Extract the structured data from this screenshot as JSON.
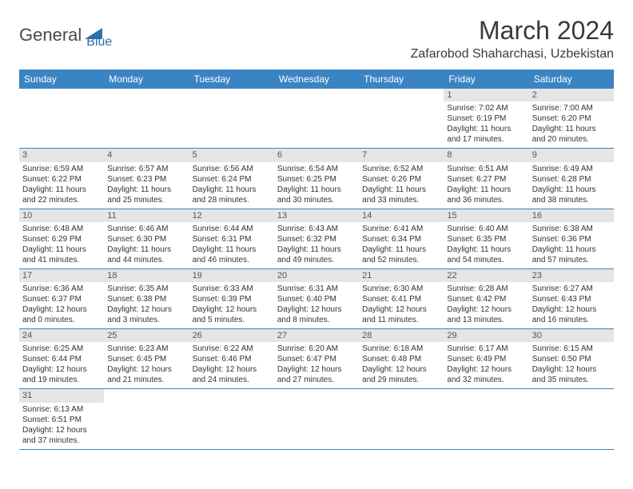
{
  "logo": {
    "part1": "General",
    "part2": "Blue"
  },
  "title": "March 2024",
  "location": "Zafarobod Shaharchasi, Uzbekistan",
  "colors": {
    "header_bg": "#3b84c4",
    "daynum_bg": "#e5e5e5",
    "logo_blue": "#2f6fa8",
    "text": "#333333"
  },
  "weekdays": [
    "Sunday",
    "Monday",
    "Tuesday",
    "Wednesday",
    "Thursday",
    "Friday",
    "Saturday"
  ],
  "weeks": [
    [
      {
        "empty": true
      },
      {
        "empty": true
      },
      {
        "empty": true
      },
      {
        "empty": true
      },
      {
        "empty": true
      },
      {
        "day": "1",
        "sunrise": "Sunrise: 7:02 AM",
        "sunset": "Sunset: 6:19 PM",
        "daylight1": "Daylight: 11 hours",
        "daylight2": "and 17 minutes."
      },
      {
        "day": "2",
        "sunrise": "Sunrise: 7:00 AM",
        "sunset": "Sunset: 6:20 PM",
        "daylight1": "Daylight: 11 hours",
        "daylight2": "and 20 minutes."
      }
    ],
    [
      {
        "day": "3",
        "sunrise": "Sunrise: 6:59 AM",
        "sunset": "Sunset: 6:22 PM",
        "daylight1": "Daylight: 11 hours",
        "daylight2": "and 22 minutes."
      },
      {
        "day": "4",
        "sunrise": "Sunrise: 6:57 AM",
        "sunset": "Sunset: 6:23 PM",
        "daylight1": "Daylight: 11 hours",
        "daylight2": "and 25 minutes."
      },
      {
        "day": "5",
        "sunrise": "Sunrise: 6:56 AM",
        "sunset": "Sunset: 6:24 PM",
        "daylight1": "Daylight: 11 hours",
        "daylight2": "and 28 minutes."
      },
      {
        "day": "6",
        "sunrise": "Sunrise: 6:54 AM",
        "sunset": "Sunset: 6:25 PM",
        "daylight1": "Daylight: 11 hours",
        "daylight2": "and 30 minutes."
      },
      {
        "day": "7",
        "sunrise": "Sunrise: 6:52 AM",
        "sunset": "Sunset: 6:26 PM",
        "daylight1": "Daylight: 11 hours",
        "daylight2": "and 33 minutes."
      },
      {
        "day": "8",
        "sunrise": "Sunrise: 6:51 AM",
        "sunset": "Sunset: 6:27 PM",
        "daylight1": "Daylight: 11 hours",
        "daylight2": "and 36 minutes."
      },
      {
        "day": "9",
        "sunrise": "Sunrise: 6:49 AM",
        "sunset": "Sunset: 6:28 PM",
        "daylight1": "Daylight: 11 hours",
        "daylight2": "and 38 minutes."
      }
    ],
    [
      {
        "day": "10",
        "sunrise": "Sunrise: 6:48 AM",
        "sunset": "Sunset: 6:29 PM",
        "daylight1": "Daylight: 11 hours",
        "daylight2": "and 41 minutes."
      },
      {
        "day": "11",
        "sunrise": "Sunrise: 6:46 AM",
        "sunset": "Sunset: 6:30 PM",
        "daylight1": "Daylight: 11 hours",
        "daylight2": "and 44 minutes."
      },
      {
        "day": "12",
        "sunrise": "Sunrise: 6:44 AM",
        "sunset": "Sunset: 6:31 PM",
        "daylight1": "Daylight: 11 hours",
        "daylight2": "and 46 minutes."
      },
      {
        "day": "13",
        "sunrise": "Sunrise: 6:43 AM",
        "sunset": "Sunset: 6:32 PM",
        "daylight1": "Daylight: 11 hours",
        "daylight2": "and 49 minutes."
      },
      {
        "day": "14",
        "sunrise": "Sunrise: 6:41 AM",
        "sunset": "Sunset: 6:34 PM",
        "daylight1": "Daylight: 11 hours",
        "daylight2": "and 52 minutes."
      },
      {
        "day": "15",
        "sunrise": "Sunrise: 6:40 AM",
        "sunset": "Sunset: 6:35 PM",
        "daylight1": "Daylight: 11 hours",
        "daylight2": "and 54 minutes."
      },
      {
        "day": "16",
        "sunrise": "Sunrise: 6:38 AM",
        "sunset": "Sunset: 6:36 PM",
        "daylight1": "Daylight: 11 hours",
        "daylight2": "and 57 minutes."
      }
    ],
    [
      {
        "day": "17",
        "sunrise": "Sunrise: 6:36 AM",
        "sunset": "Sunset: 6:37 PM",
        "daylight1": "Daylight: 12 hours",
        "daylight2": "and 0 minutes."
      },
      {
        "day": "18",
        "sunrise": "Sunrise: 6:35 AM",
        "sunset": "Sunset: 6:38 PM",
        "daylight1": "Daylight: 12 hours",
        "daylight2": "and 3 minutes."
      },
      {
        "day": "19",
        "sunrise": "Sunrise: 6:33 AM",
        "sunset": "Sunset: 6:39 PM",
        "daylight1": "Daylight: 12 hours",
        "daylight2": "and 5 minutes."
      },
      {
        "day": "20",
        "sunrise": "Sunrise: 6:31 AM",
        "sunset": "Sunset: 6:40 PM",
        "daylight1": "Daylight: 12 hours",
        "daylight2": "and 8 minutes."
      },
      {
        "day": "21",
        "sunrise": "Sunrise: 6:30 AM",
        "sunset": "Sunset: 6:41 PM",
        "daylight1": "Daylight: 12 hours",
        "daylight2": "and 11 minutes."
      },
      {
        "day": "22",
        "sunrise": "Sunrise: 6:28 AM",
        "sunset": "Sunset: 6:42 PM",
        "daylight1": "Daylight: 12 hours",
        "daylight2": "and 13 minutes."
      },
      {
        "day": "23",
        "sunrise": "Sunrise: 6:27 AM",
        "sunset": "Sunset: 6:43 PM",
        "daylight1": "Daylight: 12 hours",
        "daylight2": "and 16 minutes."
      }
    ],
    [
      {
        "day": "24",
        "sunrise": "Sunrise: 6:25 AM",
        "sunset": "Sunset: 6:44 PM",
        "daylight1": "Daylight: 12 hours",
        "daylight2": "and 19 minutes."
      },
      {
        "day": "25",
        "sunrise": "Sunrise: 6:23 AM",
        "sunset": "Sunset: 6:45 PM",
        "daylight1": "Daylight: 12 hours",
        "daylight2": "and 21 minutes."
      },
      {
        "day": "26",
        "sunrise": "Sunrise: 6:22 AM",
        "sunset": "Sunset: 6:46 PM",
        "daylight1": "Daylight: 12 hours",
        "daylight2": "and 24 minutes."
      },
      {
        "day": "27",
        "sunrise": "Sunrise: 6:20 AM",
        "sunset": "Sunset: 6:47 PM",
        "daylight1": "Daylight: 12 hours",
        "daylight2": "and 27 minutes."
      },
      {
        "day": "28",
        "sunrise": "Sunrise: 6:18 AM",
        "sunset": "Sunset: 6:48 PM",
        "daylight1": "Daylight: 12 hours",
        "daylight2": "and 29 minutes."
      },
      {
        "day": "29",
        "sunrise": "Sunrise: 6:17 AM",
        "sunset": "Sunset: 6:49 PM",
        "daylight1": "Daylight: 12 hours",
        "daylight2": "and 32 minutes."
      },
      {
        "day": "30",
        "sunrise": "Sunrise: 6:15 AM",
        "sunset": "Sunset: 6:50 PM",
        "daylight1": "Daylight: 12 hours",
        "daylight2": "and 35 minutes."
      }
    ],
    [
      {
        "day": "31",
        "sunrise": "Sunrise: 6:13 AM",
        "sunset": "Sunset: 6:51 PM",
        "daylight1": "Daylight: 12 hours",
        "daylight2": "and 37 minutes."
      },
      {
        "empty": true
      },
      {
        "empty": true
      },
      {
        "empty": true
      },
      {
        "empty": true
      },
      {
        "empty": true
      },
      {
        "empty": true
      }
    ]
  ]
}
